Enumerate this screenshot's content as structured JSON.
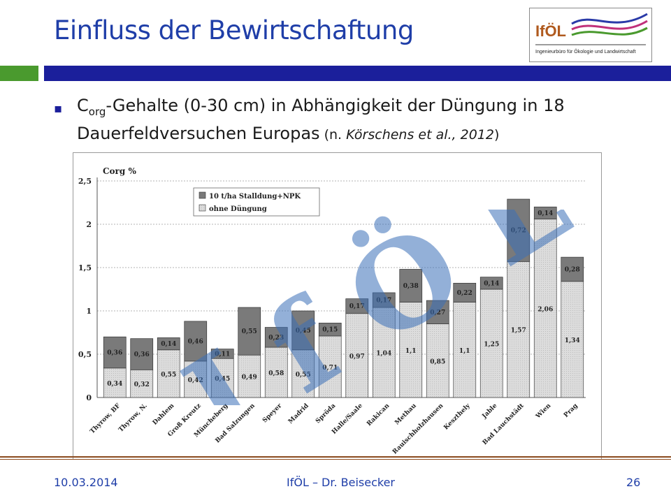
{
  "slide": {
    "title": "Einfluss der Bewirtschaftung",
    "bullet": {
      "c": "C",
      "sub": "org",
      "text_main": "-Gehalte (0-30 cm) in Abhängigkeit der Düngung in 18 Dauerfeldversuchen Europas",
      "cite_open": " (n. ",
      "cite_italic": "Körschens et al., 2012",
      "cite_close": ")"
    },
    "footer": {
      "date": "10.03.2014",
      "center": "IfÖL – Dr. Beisecker",
      "page": "26"
    },
    "logo": {
      "name": "IfÖL",
      "subtitle": "Ingenieurbüro für Ökologie und Landwirtschaft"
    },
    "watermark": "IfÖL"
  },
  "colors": {
    "title_blue": "#1f3ea8",
    "bar_blue": "#1b1f9b",
    "accent_green": "#4a9a2e",
    "footer_brown": "#8b4a1e",
    "bar_dark": "#7a7a7a",
    "bar_light": "#dcdcdc",
    "watermark": "#3b6fb8"
  },
  "chart_data": {
    "type": "bar",
    "stacked": true,
    "ylabel": "Corg %",
    "ylim": [
      0,
      2.5
    ],
    "yticks": [
      "0",
      "0,5",
      "1",
      "1,5",
      "2",
      "2,5"
    ],
    "grid": true,
    "legend_position": "top-left",
    "categories": [
      "Thyrow, BF",
      "Thyrow, N.",
      "Dahlem",
      "Groß Kreutz",
      "Müncheberg",
      "Bad Salzungen",
      "Speyer",
      "Madrid",
      "Spröda",
      "Halle/Saale",
      "Rakican",
      "Methau",
      "Rauischholzhausen",
      "Keszthely",
      "Jable",
      "Bad Lauchstädt",
      "Wien",
      "Prag"
    ],
    "series": [
      {
        "name": "ohne Düngung",
        "values": [
          0.34,
          0.32,
          0.55,
          0.42,
          0.45,
          0.49,
          0.58,
          0.55,
          0.71,
          0.97,
          1.04,
          1.1,
          0.85,
          1.1,
          1.25,
          1.57,
          2.06,
          1.34
        ],
        "labels": [
          "0,34",
          "0,32",
          "0,55",
          "0,42",
          "0,45",
          "0,49",
          "0,58",
          "0,55",
          "0,71",
          "0,97",
          "1,04",
          "1,1",
          "0,85",
          "1,1",
          "1,25",
          "1,57",
          "2,06",
          "1,34"
        ]
      },
      {
        "name": "10 t/ha Stalldung+NPK",
        "values": [
          0.36,
          0.36,
          0.14,
          0.46,
          0.11,
          0.55,
          0.23,
          0.45,
          0.15,
          0.17,
          0.17,
          0.38,
          0.27,
          0.22,
          0.14,
          0.72,
          0.14,
          0.28
        ],
        "labels": [
          "0,36",
          "0,36",
          "0,14",
          "0,46",
          "0,11",
          "0,55",
          "0,23",
          "0,45",
          "0,15",
          "0,17",
          "0,17",
          "0,38",
          "0,27",
          "0,22",
          "0,14",
          "0,72",
          "0,14",
          "0,28"
        ]
      }
    ]
  }
}
